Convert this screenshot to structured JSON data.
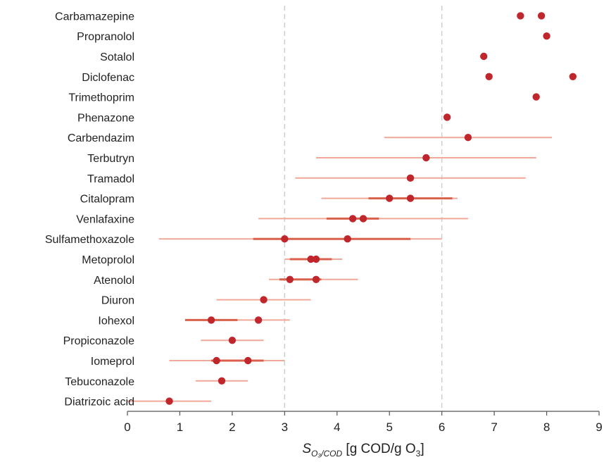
{
  "chart_data": {
    "type": "scatter",
    "xlabel_symbol": "S",
    "xlabel_subscript": "O₃/COD",
    "xlabel_unit": " [g COD/g O",
    "xlabel_unit_subscript": "3",
    "xlabel_unit_close": "]",
    "xlim": [
      0,
      9
    ],
    "xticks": [
      "0",
      "1",
      "2",
      "3",
      "4",
      "5",
      "6",
      "7",
      "8",
      "9"
    ],
    "vertical_reference_lines": [
      3,
      6
    ],
    "colors": {
      "point": "#c0272d",
      "range": "#f0a898",
      "iqr": "#d9614c",
      "ref": "#cfcfcf"
    },
    "categories": [
      "Carbamazepine",
      "Propranolol",
      "Sotalol",
      "Diclofenac",
      "Trimethoprim",
      "Phenazone",
      "Carbendazim",
      "Terbutryn",
      "Tramadol",
      "Citalopram",
      "Venlafaxine",
      "Sulfamethoxazole",
      "Metoprolol",
      "Atenolol",
      "Diuron",
      "Iohexol",
      "Propiconazole",
      "Iomeprol",
      "Tebuconazole",
      "Diatrizoic acid"
    ],
    "points": [
      [
        7.5,
        7.9
      ],
      [
        8.0
      ],
      [
        6.8
      ],
      [
        6.9,
        8.5
      ],
      [
        7.8
      ],
      [
        6.1
      ],
      [
        6.5
      ],
      [
        5.7
      ],
      [
        5.4
      ],
      [
        5.0,
        5.4
      ],
      [
        4.3,
        4.5
      ],
      [
        3.0,
        4.2
      ],
      [
        3.5,
        3.6
      ],
      [
        3.1,
        3.6
      ],
      [
        2.6
      ],
      [
        1.6,
        2.5
      ],
      [
        2.0
      ],
      [
        1.7,
        2.3
      ],
      [
        1.8
      ],
      [
        0.8
      ]
    ],
    "ranges": [
      null,
      null,
      null,
      null,
      null,
      null,
      [
        4.9,
        8.1
      ],
      [
        3.6,
        7.8
      ],
      [
        3.2,
        7.6
      ],
      [
        3.7,
        6.3
      ],
      [
        2.5,
        6.5
      ],
      [
        0.6,
        6.0
      ],
      [
        3.0,
        4.1
      ],
      [
        2.7,
        4.4
      ],
      [
        1.7,
        3.5
      ],
      [
        1.1,
        3.1
      ],
      [
        1.4,
        2.6
      ],
      [
        0.8,
        3.0
      ],
      [
        1.3,
        2.3
      ],
      [
        0.0,
        1.6
      ]
    ],
    "iqr": [
      null,
      null,
      null,
      null,
      null,
      null,
      null,
      null,
      null,
      [
        4.6,
        6.2
      ],
      [
        3.8,
        4.8
      ],
      [
        2.4,
        5.4
      ],
      [
        3.1,
        3.9
      ],
      [
        2.9,
        3.7
      ],
      null,
      [
        1.1,
        2.1
      ],
      null,
      [
        1.6,
        2.6
      ],
      null,
      null
    ]
  }
}
